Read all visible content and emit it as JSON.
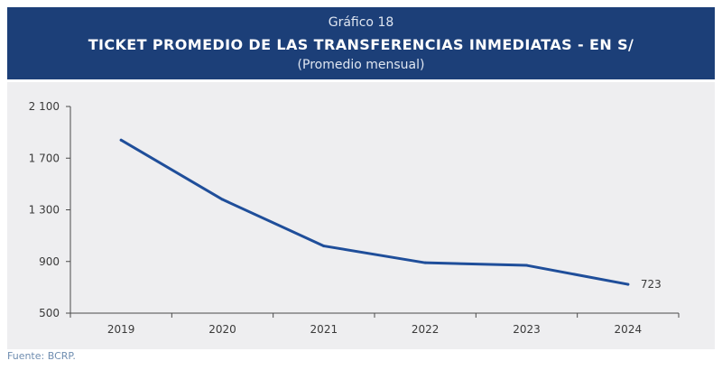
{
  "header": {
    "chart_number": "Gráfico 18",
    "title": "TICKET PROMEDIO DE LAS TRANSFERENCIAS INMEDIATAS - EN S/",
    "subtitle": "(Promedio mensual)"
  },
  "source": "Fuente: BCRP.",
  "colors": {
    "header_bg": "#1c3f78",
    "panel_bg": "#eeeef0",
    "line": "#1f4e9a",
    "tick_text": "#3a3a3a"
  },
  "chart_data": {
    "type": "line",
    "categories": [
      "2019",
      "2020",
      "2021",
      "2022",
      "2023",
      "2024"
    ],
    "series": [
      {
        "values": [
          1840,
          1380,
          1020,
          890,
          870,
          723
        ]
      }
    ],
    "ylim": [
      500,
      2100
    ],
    "yticks": [
      500,
      900,
      1300,
      1700,
      2100
    ],
    "ytick_labels": [
      "500",
      "900",
      "1 300",
      "1 700",
      "2 100"
    ],
    "annotation": "723",
    "grid": false
  }
}
